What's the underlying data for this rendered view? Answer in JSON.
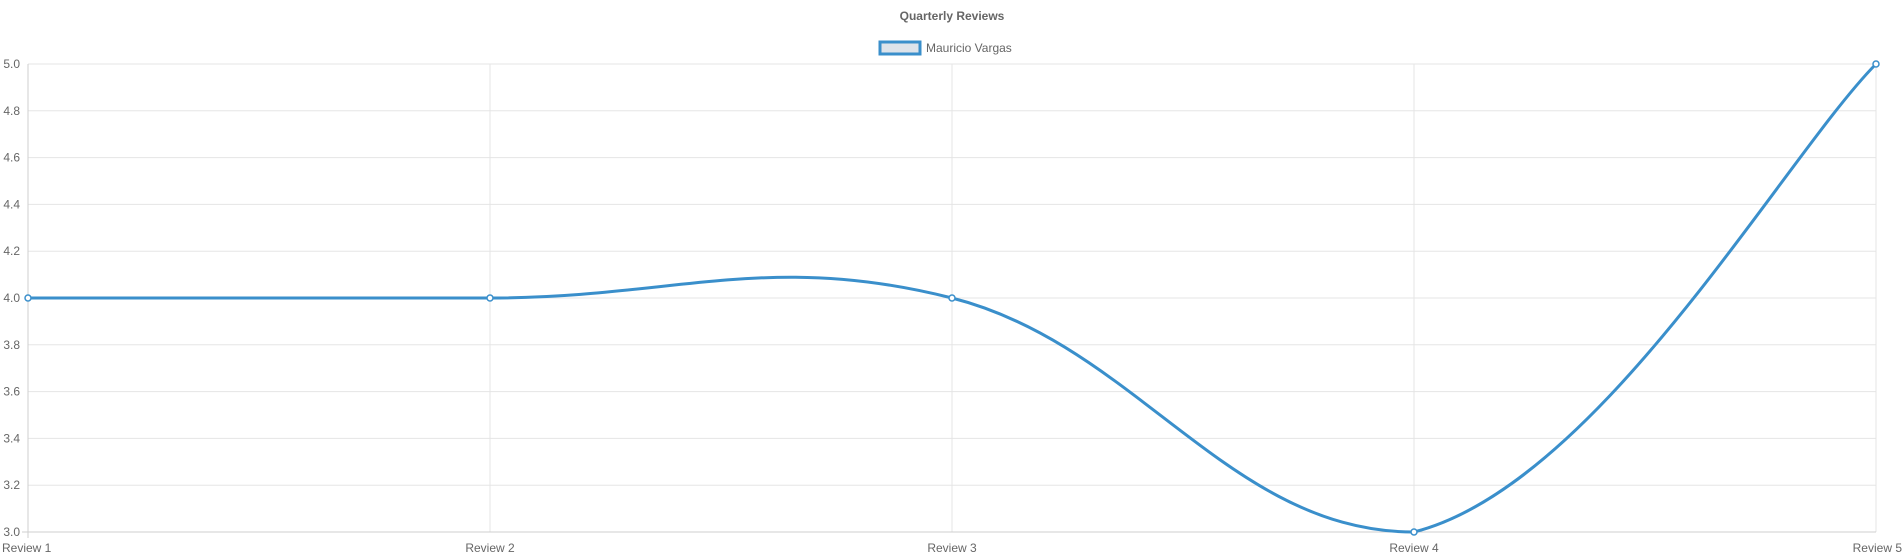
{
  "chart_data": {
    "type": "line",
    "title": "Quarterly Reviews",
    "categories": [
      "Review 1",
      "Review 2",
      "Review 3",
      "Review 4",
      "Review 5"
    ],
    "series": [
      {
        "name": "Mauricio Vargas",
        "values": [
          4.0,
          4.0,
          4.0,
          3.0,
          5.0
        ],
        "color": "#3a8fcb",
        "fill": "#dde3ea"
      }
    ],
    "ylim": [
      3.0,
      5.0
    ],
    "yticks": [
      "3.0",
      "3.2",
      "3.4",
      "3.6",
      "3.8",
      "4.0",
      "4.2",
      "4.4",
      "4.6",
      "4.8",
      "5.0"
    ],
    "grid": true,
    "legend_position": "top",
    "curve": "smooth"
  }
}
